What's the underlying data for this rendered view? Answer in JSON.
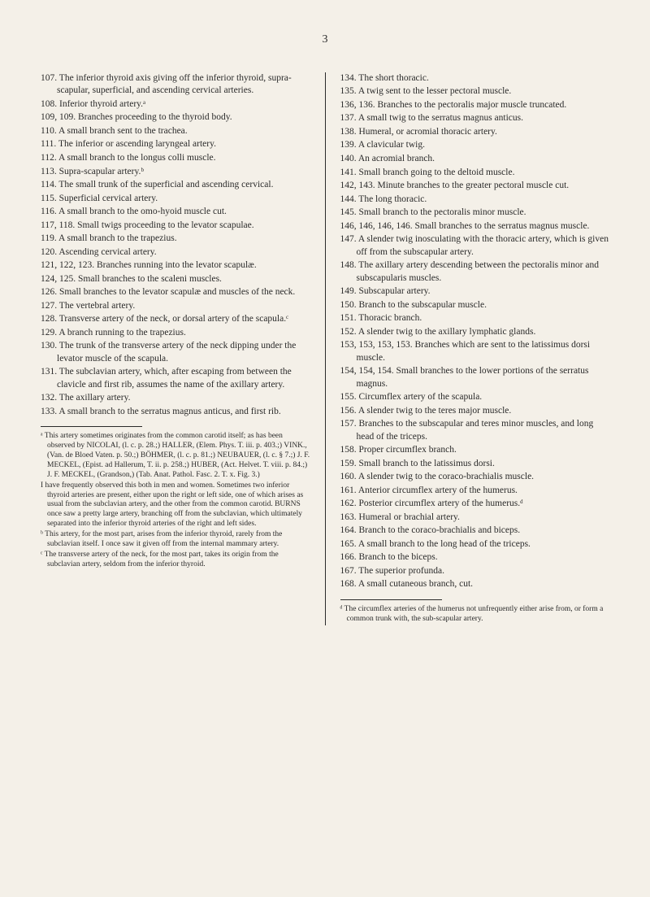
{
  "pageNumber": "3",
  "leftColumn": [
    "107. The inferior thyroid axis giving off the inferior thyroid, supra-scapular, superficial, and ascending cervical arteries.",
    "108. Inferior thyroid artery.ᵃ",
    "109, 109. Branches proceeding to the thyroid body.",
    "110. A small branch sent to the trachea.",
    "111. The inferior or ascending laryngeal artery.",
    "112. A small branch to the longus colli muscle.",
    "113. Supra-scapular artery.ᵇ",
    "114. The small trunk of the superficial and ascending cervical.",
    "115. Superficial cervical artery.",
    "116. A small branch to the omo-hyoid muscle cut.",
    "117, 118. Small twigs proceeding to the levator scapulae.",
    "119. A small branch to the trapezius.",
    "120. Ascending cervical artery.",
    "121, 122, 123. Branches running into the levator scapulæ.",
    "124, 125. Small branches to the scaleni muscles.",
    "126. Small branches to the levator scapulæ and muscles of the neck.",
    "127. The vertebral artery.",
    "128. Transverse artery of the neck, or dorsal artery of the scapula.ᶜ",
    "129. A branch running to the trapezius.",
    "130. The trunk of the transverse artery of the neck dipping under the levator muscle of the scapula.",
    "131. The subclavian artery, which, after escaping from between the clavicle and first rib, assumes the name of the axillary artery.",
    "132. The axillary artery.",
    "133. A small branch to the serratus magnus anticus, and first rib."
  ],
  "leftFootnotes": [
    "ᵃ This artery sometimes originates from the common carotid itself; as has been observed by NICOLAI, (l. c. p. 28.;) HALLER, (Elem. Phys. T. iii. p. 403.;) VINK., (Van. de Bloed Vaten. p. 50.;) BÖHMER, (l. c. p. 81.;) NEUBAUER, (l. c. § 7.;) J. F. MECKEL, (Epist. ad Hallerum, T. ii. p. 258.;) HUBER, (Act. Helvet. T. viii. p. 84.;) J. F. MECKEL, (Grandson,) (Tab. Anat. Pathol. Fasc. 2. T. x. Fig. 3.)",
    "I have frequently observed this both in men and women. Sometimes two inferior thyroid arteries are present, either upon the right or left side, one of which arises as usual from the subclavian artery, and the other from the common carotid. BURNS once saw a pretty large artery, branching off from the subclavian, which ultimately separated into the inferior thyroid arteries of the right and left sides.",
    "ᵇ This artery, for the most part, arises from the inferior thyroid, rarely from the subclavian itself. I once saw it given off from the internal mammary artery.",
    "ᶜ The transverse artery of the neck, for the most part, takes its origin from the subclavian artery, seldom from the inferior thyroid."
  ],
  "rightColumn": [
    "134. The short thoracic.",
    "135. A twig sent to the lesser pectoral muscle.",
    "136, 136. Branches to the pectoralis major muscle truncated.",
    "137. A small twig to the serratus magnus anticus.",
    "138. Humeral, or acromial thoracic artery.",
    "139. A clavicular twig.",
    "140. An acromial branch.",
    "141. Small branch going to the deltoid muscle.",
    "142, 143. Minute branches to the greater pectoral muscle cut.",
    "144. The long thoracic.",
    "145. Small branch to the pectoralis minor muscle.",
    "146, 146, 146, 146. Small branches to the serratus magnus muscle.",
    "147. A slender twig inosculating with the thoracic artery, which is given off from the subscapular artery.",
    "148. The axillary artery descending between the pectoralis minor and subscapularis muscles.",
    "149. Subscapular artery.",
    "150. Branch to the subscapular muscle.",
    "151. Thoracic branch.",
    "152. A slender twig to the axillary lymphatic glands.",
    "153, 153, 153, 153. Branches which are sent to the latissimus dorsi muscle.",
    "154, 154, 154. Small branches to the lower portions of the serratus magnus.",
    "155. Circumflex artery of the scapula.",
    "156. A slender twig to the teres major muscle.",
    "157. Branches to the subscapular and teres minor muscles, and long head of the triceps.",
    "158. Proper circumflex branch.",
    "159. Small branch to the latissimus dorsi.",
    "160. A slender twig to the coraco-brachialis muscle.",
    "161. Anterior circumflex artery of the humerus.",
    "162. Posterior circumflex artery of the humerus.ᵈ",
    "163. Humeral or brachial artery.",
    "164. Branch to the coraco-brachialis and biceps.",
    "165. A small branch to the long head of the triceps.",
    "166. Branch to the biceps.",
    "167. The superior profunda.",
    "168. A small cutaneous branch, cut."
  ],
  "rightFootnotes": [
    "ᵈ The circumflex arteries of the humerus not unfrequently either arise from, or form a common trunk with, the sub-scapular artery."
  ]
}
